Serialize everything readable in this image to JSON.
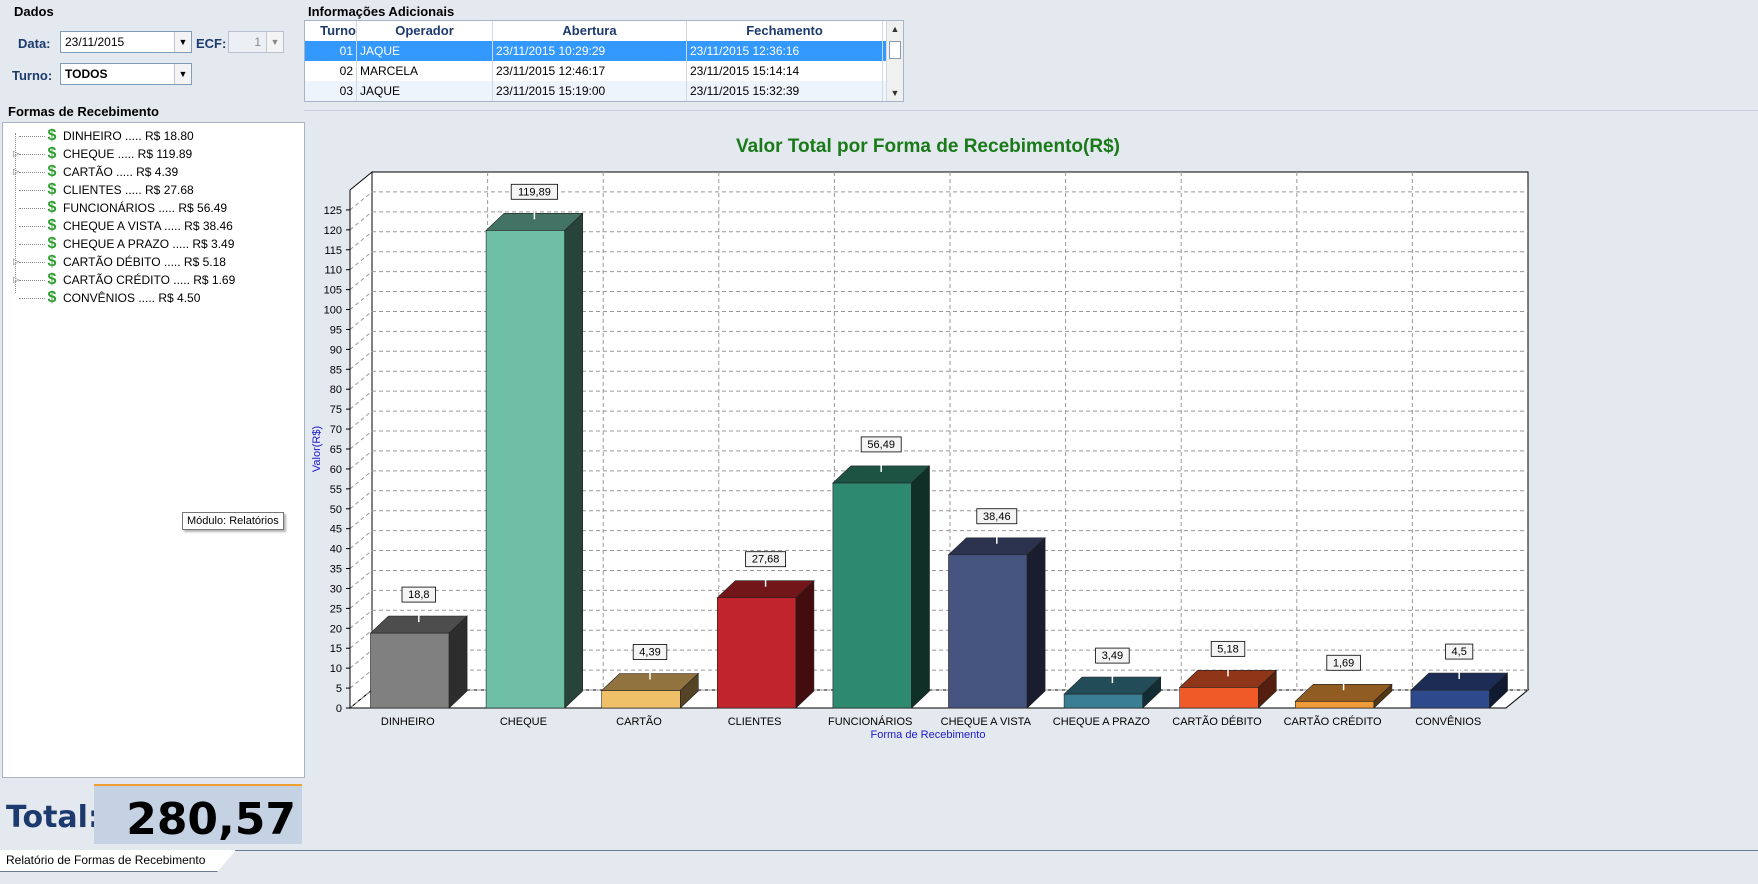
{
  "dados": {
    "title": "Dados",
    "data_label": "Data:",
    "data_value": "23/11/2015",
    "ecf_label": "ECF:",
    "ecf_value": "1",
    "turno_label": "Turno:",
    "turno_value": "TODOS"
  },
  "info": {
    "title": "Informações Adicionais",
    "columns": [
      "Turno",
      "Operador",
      "Abertura",
      "Fechamento"
    ],
    "rows": [
      {
        "turno": "01",
        "operador": "JAQUE",
        "abertura": "23/11/2015 10:29:29",
        "fechamento": "23/11/2015 12:36:16"
      },
      {
        "turno": "02",
        "operador": "MARCELA",
        "abertura": "23/11/2015 12:46:17",
        "fechamento": "23/11/2015 15:14:14"
      },
      {
        "turno": "03",
        "operador": "JAQUE",
        "abertura": "23/11/2015 15:19:00",
        "fechamento": "23/11/2015 15:32:39"
      }
    ]
  },
  "formas": {
    "title": "Formas de Recebimento",
    "items": [
      {
        "label": "DINHEIRO ..... R$ 18.80",
        "expandable": false
      },
      {
        "label": "CHEQUE ..... R$ 119.89",
        "expandable": true
      },
      {
        "label": "CARTÃO ..... R$ 4.39",
        "expandable": true
      },
      {
        "label": "CLIENTES ..... R$ 27.68",
        "expandable": false
      },
      {
        "label": "FUNCIONÁRIOS ..... R$ 56.49",
        "expandable": false
      },
      {
        "label": "CHEQUE A VISTA ..... R$ 38.46",
        "expandable": false
      },
      {
        "label": "CHEQUE A PRAZO ..... R$ 3.49",
        "expandable": false
      },
      {
        "label": "CARTÃO DÉBITO ..... R$ 5.18",
        "expandable": true
      },
      {
        "label": "CARTÃO CRÉDITO ..... R$ 1.69",
        "expandable": true
      },
      {
        "label": "CONVÊNIOS ..... R$ 4.50",
        "expandable": false
      }
    ],
    "tooltip": "Módulo: Relatórios"
  },
  "total": {
    "label": "Total:",
    "value": "280,57"
  },
  "bottom_tab": "Relatório de Formas de Recebimento",
  "icons": {
    "money": "dollar-coin-icon",
    "dropdown": "chevron-down-icon"
  },
  "chart_data": {
    "type": "bar",
    "title": "Valor Total por Forma de Recebimento(R$)",
    "xlabel": "Forma de Recebimento",
    "ylabel": "Valor(R$)",
    "ylim": [
      0,
      130
    ],
    "yticks": [
      0,
      5,
      10,
      15,
      20,
      25,
      30,
      35,
      40,
      45,
      50,
      55,
      60,
      65,
      70,
      75,
      80,
      85,
      90,
      95,
      100,
      105,
      110,
      115,
      120,
      125
    ],
    "grid": true,
    "categories": [
      "DINHEIRO",
      "CHEQUE",
      "CARTÃO",
      "CLIENTES",
      "FUNCIONÁRIOS",
      "CHEQUE A VISTA",
      "CHEQUE A PRAZO",
      "CARTÃO DÉBITO",
      "CARTÃO CRÉDITO",
      "CONVÊNIOS"
    ],
    "values": [
      18.8,
      119.89,
      4.39,
      27.68,
      56.49,
      38.46,
      3.49,
      5.18,
      1.69,
      4.5
    ],
    "data_labels": [
      "18,8",
      "119,89",
      "4,39",
      "27,68",
      "56,49",
      "38,46",
      "3,49",
      "5,18",
      "1,69",
      "4,5"
    ],
    "colors": [
      "#808080",
      "#6fbfa6",
      "#f0c068",
      "#c0242c",
      "#2e8a6e",
      "#465480",
      "#3a7e94",
      "#f05a28",
      "#f09a38",
      "#2e4a8c"
    ],
    "title_color": "#1a7a1a",
    "axis_label_color": "#1a1acc"
  }
}
